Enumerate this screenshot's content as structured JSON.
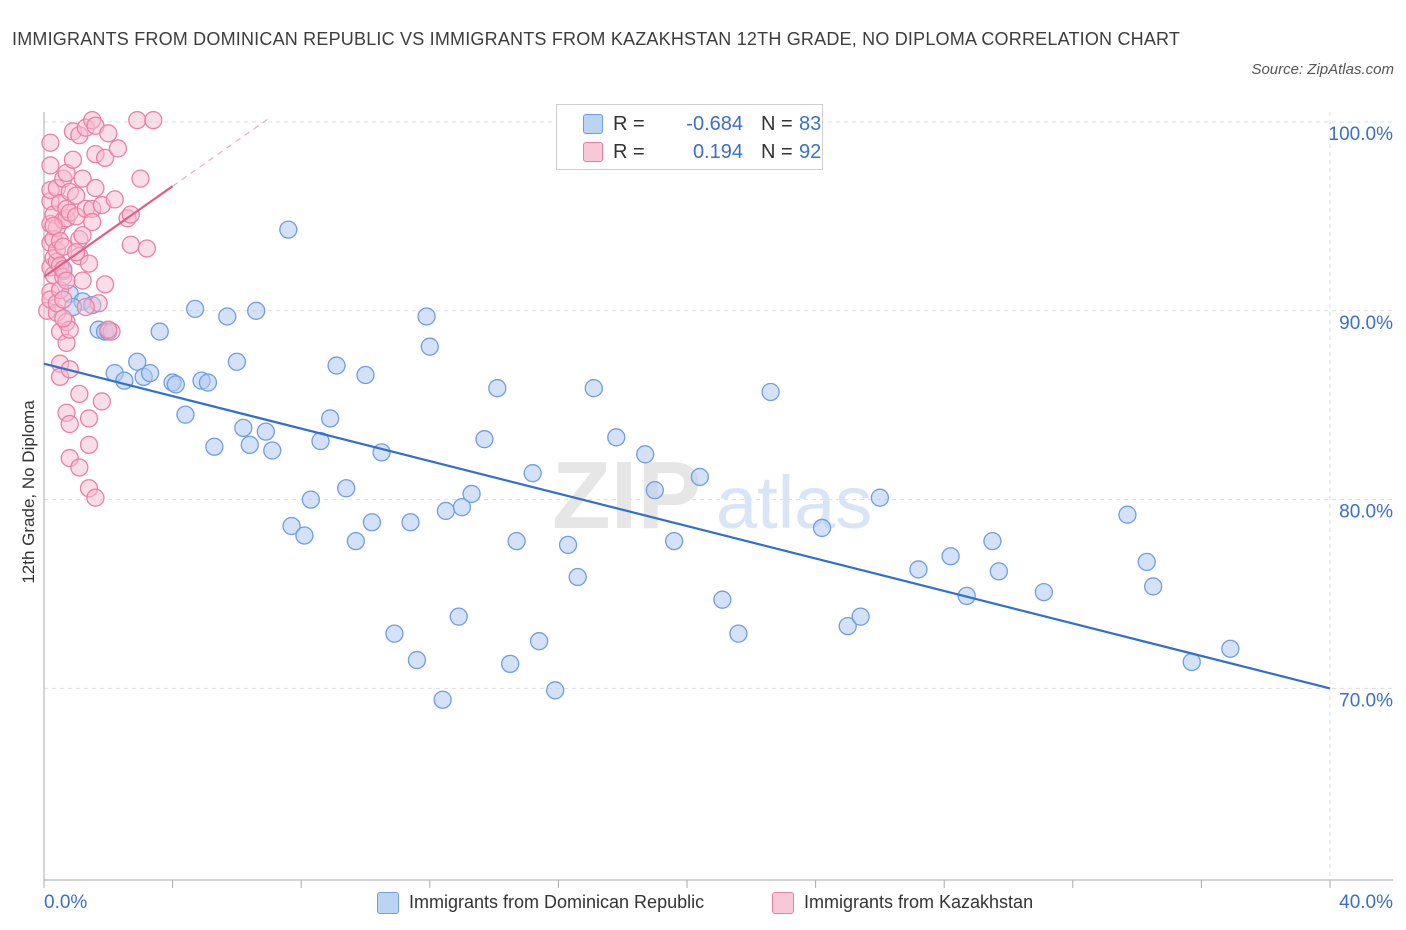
{
  "title": "IMMIGRANTS FROM DOMINICAN REPUBLIC VS IMMIGRANTS FROM KAZAKHSTAN 12TH GRADE, NO DIPLOMA CORRELATION CHART",
  "source": "Source: ZipAtlas.com",
  "watermark": {
    "zip": "ZIP",
    "atlas": "atlas"
  },
  "legend": {
    "r_label": "R =",
    "n_label": "N =",
    "series1": {
      "r": "-0.684",
      "n": "83"
    },
    "series2": {
      "r": "0.194",
      "n": "92"
    }
  },
  "colors": {
    "blue_fill": "#aecbf2",
    "blue_stroke": "#6f9ee0",
    "blue_line": "#2f6fcf",
    "pink_fill": "#f6bcd0",
    "pink_stroke": "#ec7fa4",
    "pink_line": "#e45d8a",
    "axis_label": "#3a6fd0",
    "grid": "#dddddd"
  },
  "chart_data": {
    "type": "scatter",
    "xlabel": "",
    "ylabel": "12th Grade, No Diploma",
    "xlim": [
      0,
      40
    ],
    "ylim": [
      60,
      102
    ],
    "x_ticks": [
      "0.0%",
      "40.0%"
    ],
    "y_ticks": [
      {
        "value": 100,
        "label": "100.0%"
      },
      {
        "value": 90,
        "label": "90.0%"
      },
      {
        "value": 80,
        "label": "80.0%"
      },
      {
        "value": 70,
        "label": "70.0%"
      }
    ],
    "grid": true,
    "series": [
      {
        "name": "Immigrants from Dominican Republic",
        "color": "#6f9ee0",
        "trend": {
          "x": [
            0,
            40
          ],
          "y": [
            87.2,
            70.0
          ]
        },
        "points": [
          [
            0.8,
            90.9
          ],
          [
            1.2,
            90.5
          ],
          [
            1.5,
            90.3
          ],
          [
            1.7,
            89.0
          ],
          [
            1.9,
            88.9
          ],
          [
            2.2,
            86.7
          ],
          [
            2.5,
            86.3
          ],
          [
            2.9,
            87.3
          ],
          [
            3.1,
            86.5
          ],
          [
            3.3,
            86.7
          ],
          [
            3.6,
            88.9
          ],
          [
            4.0,
            86.2
          ],
          [
            4.1,
            86.1
          ],
          [
            4.4,
            84.5
          ],
          [
            4.7,
            90.1
          ],
          [
            4.9,
            86.3
          ],
          [
            5.1,
            86.2
          ],
          [
            5.3,
            82.8
          ],
          [
            5.7,
            89.7
          ],
          [
            6.0,
            87.3
          ],
          [
            6.2,
            83.8
          ],
          [
            6.4,
            82.9
          ],
          [
            6.6,
            90.0
          ],
          [
            6.9,
            83.6
          ],
          [
            7.1,
            82.6
          ],
          [
            7.6,
            94.3
          ],
          [
            7.7,
            78.6
          ],
          [
            8.1,
            78.1
          ],
          [
            8.3,
            80.0
          ],
          [
            8.6,
            83.1
          ],
          [
            8.9,
            84.3
          ],
          [
            9.1,
            87.1
          ],
          [
            9.4,
            80.6
          ],
          [
            9.7,
            77.8
          ],
          [
            10.0,
            86.6
          ],
          [
            10.2,
            78.8
          ],
          [
            10.5,
            82.5
          ],
          [
            10.9,
            72.9
          ],
          [
            11.4,
            78.8
          ],
          [
            11.6,
            71.5
          ],
          [
            11.9,
            89.7
          ],
          [
            12.0,
            88.1
          ],
          [
            12.4,
            69.4
          ],
          [
            12.5,
            79.4
          ],
          [
            12.9,
            73.8
          ],
          [
            13.0,
            79.6
          ],
          [
            13.3,
            80.3
          ],
          [
            13.7,
            83.2
          ],
          [
            14.1,
            85.9
          ],
          [
            14.5,
            71.3
          ],
          [
            14.7,
            77.8
          ],
          [
            15.2,
            81.4
          ],
          [
            15.4,
            72.5
          ],
          [
            15.9,
            69.9
          ],
          [
            16.3,
            77.6
          ],
          [
            16.6,
            75.9
          ],
          [
            17.1,
            85.9
          ],
          [
            17.8,
            83.3
          ],
          [
            18.7,
            82.4
          ],
          [
            19.0,
            80.5
          ],
          [
            19.6,
            77.8
          ],
          [
            20.4,
            81.2
          ],
          [
            21.1,
            74.7
          ],
          [
            21.6,
            72.9
          ],
          [
            22.6,
            85.7
          ],
          [
            24.2,
            78.5
          ],
          [
            25.0,
            73.3
          ],
          [
            25.4,
            73.8
          ],
          [
            26.0,
            80.1
          ],
          [
            27.2,
            76.3
          ],
          [
            28.2,
            77.0
          ],
          [
            28.7,
            74.9
          ],
          [
            29.5,
            77.8
          ],
          [
            29.7,
            76.2
          ],
          [
            31.1,
            75.1
          ],
          [
            33.7,
            79.2
          ],
          [
            34.3,
            76.7
          ],
          [
            34.5,
            75.4
          ],
          [
            35.7,
            71.4
          ],
          [
            36.9,
            72.1
          ],
          [
            0.6,
            92.1
          ],
          [
            0.9,
            90.2
          ],
          [
            2.0,
            88.9
          ]
        ]
      },
      {
        "name": "Immigrants from Kazakhstan",
        "color": "#ec7fa4",
        "trend": {
          "x": [
            0,
            4.0
          ],
          "y": [
            91.8,
            96.6
          ]
        },
        "trend_extension": {
          "x": [
            4.0,
            7.0
          ],
          "y": [
            96.6,
            100.2
          ]
        },
        "points": [
          [
            0.1,
            90.0
          ],
          [
            0.2,
            91.0
          ],
          [
            0.2,
            92.3
          ],
          [
            0.2,
            93.6
          ],
          [
            0.2,
            94.6
          ],
          [
            0.2,
            95.8
          ],
          [
            0.2,
            96.4
          ],
          [
            0.2,
            97.7
          ],
          [
            0.2,
            98.9
          ],
          [
            0.2,
            90.6
          ],
          [
            0.3,
            92.8
          ],
          [
            0.3,
            93.8
          ],
          [
            0.3,
            95.1
          ],
          [
            0.3,
            91.9
          ],
          [
            0.4,
            89.9
          ],
          [
            0.4,
            92.6
          ],
          [
            0.4,
            93.2
          ],
          [
            0.4,
            94.4
          ],
          [
            0.4,
            96.5
          ],
          [
            0.4,
            90.4
          ],
          [
            0.5,
            88.9
          ],
          [
            0.5,
            91.1
          ],
          [
            0.5,
            92.4
          ],
          [
            0.5,
            93.7
          ],
          [
            0.5,
            95.7
          ],
          [
            0.5,
            87.2
          ],
          [
            0.5,
            86.5
          ],
          [
            0.6,
            90.6
          ],
          [
            0.6,
            91.8
          ],
          [
            0.6,
            92.2
          ],
          [
            0.6,
            93.4
          ],
          [
            0.6,
            94.8
          ],
          [
            0.6,
            97.0
          ],
          [
            0.7,
            84.6
          ],
          [
            0.7,
            88.3
          ],
          [
            0.7,
            89.4
          ],
          [
            0.7,
            91.6
          ],
          [
            0.7,
            94.9
          ],
          [
            0.7,
            95.4
          ],
          [
            0.7,
            97.3
          ],
          [
            0.8,
            82.2
          ],
          [
            0.8,
            84.0
          ],
          [
            0.8,
            86.9
          ],
          [
            0.8,
            89.0
          ],
          [
            0.8,
            95.2
          ],
          [
            0.8,
            96.3
          ],
          [
            0.9,
            98.0
          ],
          [
            0.9,
            99.5
          ],
          [
            1.0,
            95.0
          ],
          [
            1.0,
            96.1
          ],
          [
            1.1,
            92.9
          ],
          [
            1.1,
            93.8
          ],
          [
            1.1,
            85.6
          ],
          [
            1.1,
            99.3
          ],
          [
            1.1,
            81.7
          ],
          [
            1.2,
            97.0
          ],
          [
            1.2,
            94.0
          ],
          [
            1.3,
            99.7
          ],
          [
            1.3,
            95.4
          ],
          [
            1.4,
            80.6
          ],
          [
            1.4,
            82.9
          ],
          [
            1.4,
            84.3
          ],
          [
            1.4,
            92.5
          ],
          [
            1.5,
            95.4
          ],
          [
            1.5,
            94.7
          ],
          [
            1.5,
            100.1
          ],
          [
            1.6,
            96.5
          ],
          [
            1.6,
            98.3
          ],
          [
            1.6,
            80.1
          ],
          [
            1.6,
            99.8
          ],
          [
            1.7,
            90.4
          ],
          [
            1.8,
            85.2
          ],
          [
            1.8,
            95.6
          ],
          [
            1.9,
            91.4
          ],
          [
            1.9,
            98.1
          ],
          [
            2.0,
            99.4
          ],
          [
            2.1,
            88.9
          ],
          [
            2.2,
            95.9
          ],
          [
            2.3,
            98.6
          ],
          [
            2.6,
            94.9
          ],
          [
            2.7,
            93.5
          ],
          [
            2.7,
            95.1
          ],
          [
            2.9,
            100.1
          ],
          [
            3.0,
            97.0
          ],
          [
            3.2,
            93.3
          ],
          [
            3.4,
            100.1
          ],
          [
            0.3,
            94.5
          ],
          [
            0.6,
            89.6
          ],
          [
            1.0,
            93.1
          ],
          [
            1.2,
            91.6
          ],
          [
            1.3,
            90.2
          ],
          [
            2.0,
            89.0
          ]
        ]
      }
    ]
  }
}
